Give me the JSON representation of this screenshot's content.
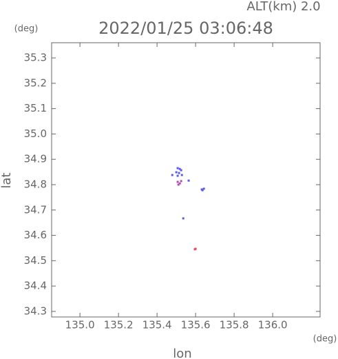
{
  "chart_data": {
    "type": "scatter",
    "title": "2022/01/25 03:06:48",
    "annotation": "ALT(km) 2.0",
    "y_unit": "(deg)",
    "x_unit": "(deg)",
    "x_label": "lon",
    "y_label": "lat",
    "xlim": [
      134.853,
      136.246
    ],
    "ylim": [
      34.278,
      35.36
    ],
    "xticks": [
      {
        "value": 135.0,
        "label": "135.0"
      },
      135.2,
      135.4,
      135.6,
      135.8,
      {
        "value": 136.0,
        "label": "136.0"
      }
    ],
    "yticks": [
      34.3,
      34.4,
      34.5,
      34.6,
      34.7,
      34.8,
      34.9,
      {
        "value": 35.0,
        "label": "35.0"
      },
      35.1,
      35.2,
      35.3
    ],
    "series": [
      {
        "color": "#5a5ae6",
        "x": [
          135.507,
          135.518,
          135.525,
          135.5,
          135.514,
          135.529,
          135.507,
          135.479,
          135.632,
          135.643,
          135.636,
          135.536,
          135.564
        ],
        "values": [
          34.865,
          34.862,
          34.857,
          34.849,
          34.846,
          34.838,
          34.835,
          34.838,
          34.781,
          34.784,
          34.778,
          34.667,
          34.816
        ]
      },
      {
        "color": "#b04fb0",
        "x": [
          135.507,
          135.518,
          135.511,
          135.525
        ],
        "values": [
          34.811,
          34.805,
          34.8,
          34.814
        ]
      },
      {
        "color": "#e0505a",
        "x": [
          135.596,
          135.6
        ],
        "values": [
          34.545,
          34.547
        ]
      }
    ]
  }
}
